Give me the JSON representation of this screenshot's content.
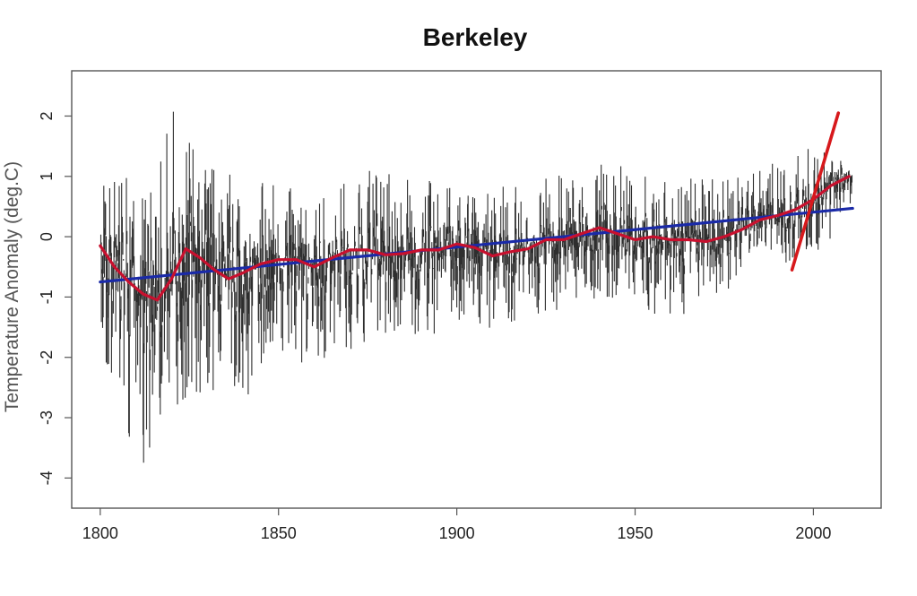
{
  "chart_data": {
    "type": "line",
    "title": "Berkeley",
    "xlabel": "",
    "ylabel": "Temperature Anomaly (deg.C)",
    "xlim": [
      1792,
      2019
    ],
    "ylim": [
      -4.5,
      2.75
    ],
    "xticks": [
      1800,
      1850,
      1900,
      1950,
      2000
    ],
    "yticks": [
      -4,
      -3,
      -2,
      -1,
      0,
      1,
      2
    ],
    "grid": false,
    "legend": "none",
    "colors": {
      "raw": "#111111",
      "smooth": "#c8102e",
      "trend": "#1a2aa8",
      "recent_trend": "#d7191c"
    },
    "series": [
      {
        "style": "raw-annual-variability",
        "x_range": [
          1800,
          2011
        ],
        "envelope": [
          {
            "x": 1800,
            "min": -2.2,
            "max": 1.3
          },
          {
            "x": 1805,
            "min": -2.6,
            "max": 1.1
          },
          {
            "x": 1809,
            "min": -4.2,
            "max": 0.9
          },
          {
            "x": 1815,
            "min": -3.4,
            "max": 1.0
          },
          {
            "x": 1822,
            "min": -2.9,
            "max": 2.4
          },
          {
            "x": 1830,
            "min": -2.7,
            "max": 1.3
          },
          {
            "x": 1840,
            "min": -3.0,
            "max": 0.9
          },
          {
            "x": 1850,
            "min": -1.9,
            "max": 0.9
          },
          {
            "x": 1860,
            "min": -2.2,
            "max": 0.7
          },
          {
            "x": 1878,
            "min": -1.8,
            "max": 1.2
          },
          {
            "x": 1900,
            "min": -1.6,
            "max": 0.8
          },
          {
            "x": 1920,
            "min": -1.4,
            "max": 0.9
          },
          {
            "x": 1942,
            "min": -1.0,
            "max": 1.3
          },
          {
            "x": 1960,
            "min": -1.4,
            "max": 1.0
          },
          {
            "x": 1980,
            "min": -0.9,
            "max": 1.0
          },
          {
            "x": 2000,
            "min": -0.3,
            "max": 1.5
          },
          {
            "x": 2011,
            "min": 0.3,
            "max": 1.4
          }
        ]
      },
      {
        "style": "smooth",
        "x": [
          1800,
          1804,
          1808,
          1812,
          1816,
          1820,
          1824,
          1828,
          1832,
          1836,
          1840,
          1845,
          1850,
          1855,
          1860,
          1865,
          1870,
          1875,
          1880,
          1885,
          1890,
          1895,
          1900,
          1905,
          1910,
          1915,
          1920,
          1925,
          1930,
          1935,
          1940,
          1945,
          1950,
          1955,
          1960,
          1965,
          1970,
          1975,
          1980,
          1985,
          1990,
          1995,
          2000,
          2005,
          2010
        ],
        "y": [
          -0.15,
          -0.5,
          -0.75,
          -0.95,
          -1.05,
          -0.7,
          -0.2,
          -0.35,
          -0.55,
          -0.7,
          -0.6,
          -0.45,
          -0.38,
          -0.38,
          -0.5,
          -0.35,
          -0.22,
          -0.22,
          -0.3,
          -0.28,
          -0.22,
          -0.22,
          -0.12,
          -0.18,
          -0.32,
          -0.25,
          -0.2,
          -0.05,
          -0.05,
          0.05,
          0.15,
          0.05,
          -0.05,
          0.0,
          -0.05,
          -0.05,
          -0.08,
          0.0,
          0.12,
          0.28,
          0.35,
          0.45,
          0.62,
          0.85,
          1.0
        ]
      },
      {
        "style": "linear-trend",
        "x": [
          1800,
          2011
        ],
        "y": [
          -0.75,
          0.47
        ]
      },
      {
        "style": "recent-trend",
        "x": [
          1994,
          2007
        ],
        "y": [
          -0.55,
          2.05
        ]
      }
    ]
  }
}
